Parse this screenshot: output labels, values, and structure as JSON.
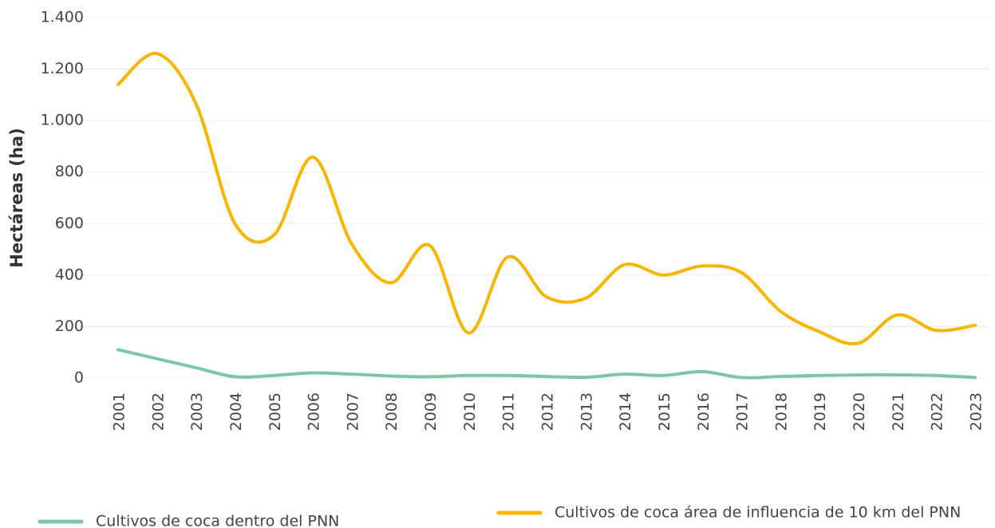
{
  "chart_data": {
    "type": "line",
    "y_label": "Hectáreas (ha)",
    "categories": [
      "2001",
      "2002",
      "2003",
      "2004",
      "2005",
      "2006",
      "2007",
      "2008",
      "2009",
      "2010",
      "2011",
      "2012",
      "2013",
      "2014",
      "2015",
      "2016",
      "2017",
      "2018",
      "2019",
      "2020",
      "2021",
      "2022",
      "2023"
    ],
    "series": [
      {
        "name": "Cultivos de coca dentro del PNN",
        "color": "#7cc6a4",
        "values": [
          110,
          75,
          40,
          5,
          10,
          20,
          15,
          8,
          5,
          10,
          10,
          6,
          3,
          15,
          10,
          25,
          2,
          6,
          10,
          12,
          12,
          10,
          2
        ]
      },
      {
        "name": "Cultivos de coca área de influencia de 10 km del PNN",
        "color": "#f7b500",
        "values": [
          1140,
          1260,
          1065,
          600,
          555,
          858,
          520,
          370,
          515,
          175,
          470,
          315,
          310,
          440,
          400,
          435,
          410,
          260,
          180,
          135,
          245,
          185,
          205
        ]
      }
    ],
    "ylim": [
      0,
      1400
    ],
    "yticks": [
      0,
      200,
      400,
      600,
      800,
      {
        "value": 1000,
        "label": "1.000"
      },
      {
        "value": 1200,
        "label": "1.200"
      },
      {
        "value": 1400,
        "label": "1.400"
      }
    ],
    "grid": true,
    "smooth": true,
    "legend": "bottom"
  }
}
